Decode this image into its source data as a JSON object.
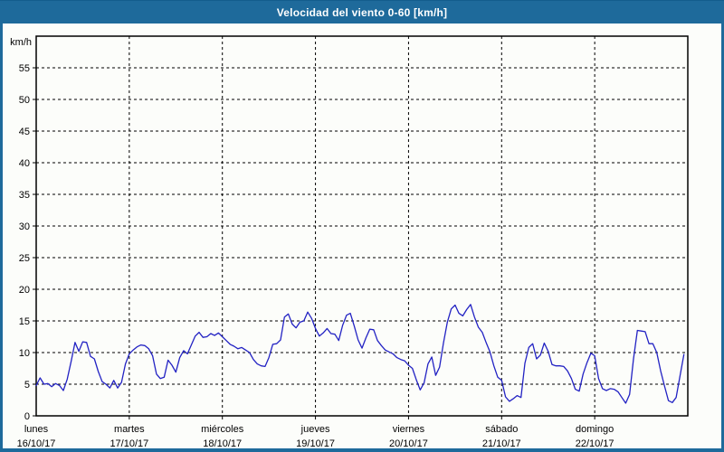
{
  "header": {
    "title": "Velocidad del viento 0-60 [km/h]"
  },
  "colors": {
    "frame_blue": "#1e6a9b",
    "plot_background": "#fcfdfa",
    "line_blue": "#2222c3",
    "grid_black": "#000000",
    "title_text": "#ffffff"
  },
  "chart_data": {
    "type": "line",
    "title": "Velocidad del viento 0-60 [km/h]",
    "ylabel": "km/h",
    "xlabel": "",
    "ylim": [
      0,
      60
    ],
    "y_ticks": [
      0,
      5,
      10,
      15,
      20,
      25,
      30,
      35,
      40,
      45,
      50,
      55
    ],
    "grid": true,
    "legend": "none",
    "x_unit": "hourly samples, 24 per day, Mon 16/10/17 00:00 through Sun 22/10/17 23:00",
    "days": [
      {
        "name": "lunes",
        "date": "16/10/17"
      },
      {
        "name": "martes",
        "date": "17/10/17"
      },
      {
        "name": "miércoles",
        "date": "18/10/17"
      },
      {
        "name": "jueves",
        "date": "19/10/17"
      },
      {
        "name": "viernes",
        "date": "20/10/17"
      },
      {
        "name": "sábado",
        "date": "21/10/17"
      },
      {
        "name": "domingo",
        "date": "22/10/17"
      }
    ],
    "series": [
      {
        "name": "Velocidad del viento [km/h]",
        "values": [
          4.8,
          6.0,
          5.0,
          5.1,
          4.6,
          5.1,
          4.8,
          4.0,
          5.8,
          8.6,
          11.6,
          10.2,
          11.7,
          11.6,
          9.4,
          9.0,
          7.0,
          5.4,
          5.0,
          4.4,
          5.6,
          4.4,
          5.3,
          8.2,
          9.8,
          10.4,
          10.9,
          11.2,
          11.1,
          10.6,
          9.5,
          6.6,
          5.9,
          6.1,
          8.8,
          8.0,
          6.9,
          9.2,
          10.3,
          9.8,
          11.2,
          12.6,
          13.2,
          12.4,
          12.5,
          13.0,
          12.7,
          13.1,
          12.5,
          11.9,
          11.3,
          11.0,
          10.6,
          10.8,
          10.4,
          10.0,
          8.9,
          8.2,
          7.9,
          7.8,
          9.2,
          11.3,
          11.4,
          12.0,
          15.6,
          16.1,
          14.5,
          13.9,
          14.8,
          15.0,
          16.4,
          15.4,
          13.8,
          12.6,
          13.1,
          13.8,
          13.0,
          12.9,
          11.9,
          14.3,
          15.9,
          16.2,
          14.2,
          12.0,
          10.7,
          12.3,
          13.7,
          13.6,
          11.9,
          11.1,
          10.4,
          10.1,
          9.8,
          9.2,
          8.9,
          8.7,
          8.0,
          7.5,
          5.7,
          4.1,
          5.2,
          8.2,
          9.3,
          6.4,
          7.7,
          11.5,
          14.8,
          16.9,
          17.5,
          16.2,
          15.8,
          16.8,
          17.6,
          15.6,
          14.0,
          13.2,
          11.6,
          10.1,
          7.9,
          6.1,
          5.6,
          3.0,
          2.3,
          2.7,
          3.2,
          2.9,
          8.3,
          10.8,
          11.4,
          9.0,
          9.6,
          11.5,
          10.2,
          8.1,
          7.9,
          7.9,
          7.8,
          7.1,
          5.9,
          4.2,
          3.9,
          6.6,
          8.4,
          9.9,
          9.5,
          5.9,
          4.3,
          4.0,
          4.3,
          4.2,
          3.8,
          2.9,
          2.0,
          3.4,
          9.0,
          13.5,
          13.4,
          13.3,
          11.4,
          11.4,
          10.0,
          7.1,
          4.7,
          2.4,
          2.1,
          2.9,
          6.3,
          9.7
        ]
      }
    ]
  }
}
